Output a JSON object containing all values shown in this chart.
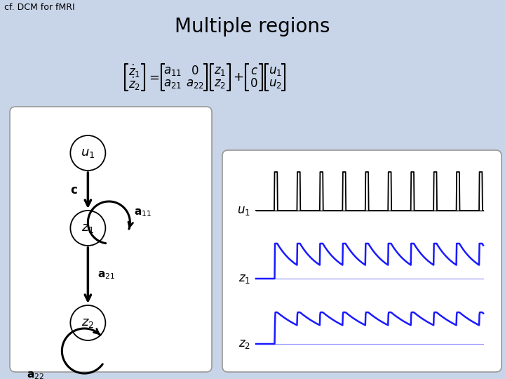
{
  "bg_color": "#c8d4e8",
  "title": "Multiple regions",
  "subtitle": "cf. DCM for fMRI",
  "title_fontsize": 20,
  "subtitle_fontsize": 9,
  "white": "#ffffff",
  "black": "#000000",
  "blue": "#1a1aff",
  "panel_edge": "#999999"
}
